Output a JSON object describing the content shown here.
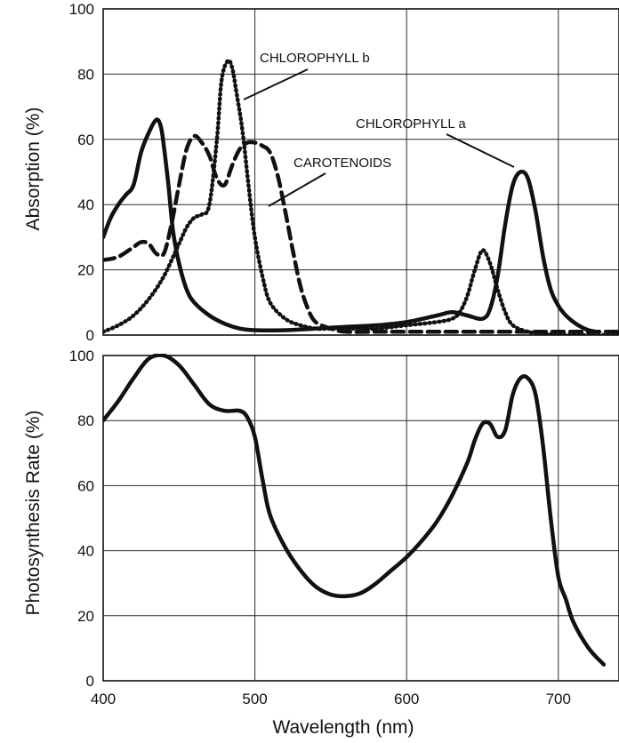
{
  "chart_data": [
    {
      "type": "line",
      "title": "",
      "xlabel": "",
      "ylabel": "Absorption (%)",
      "xlim": [
        400,
        740
      ],
      "ylim": [
        0,
        100
      ],
      "x_ticks": [
        400,
        500,
        600,
        700
      ],
      "y_ticks": [
        "0",
        "20",
        "40",
        "60",
        "80",
        "100"
      ],
      "grid": true,
      "series": [
        {
          "name": "CHLOROPHYLL a",
          "style": "solid",
          "color": "#111111",
          "x": [
            400,
            405,
            410,
            415,
            420,
            425,
            430,
            435,
            438,
            440,
            443,
            446,
            450,
            455,
            460,
            470,
            480,
            490,
            500,
            520,
            540,
            560,
            580,
            600,
            620,
            630,
            640,
            650,
            655,
            660,
            665,
            670,
            675,
            680,
            685,
            690,
            695,
            700,
            705,
            710,
            715,
            720,
            725
          ],
          "y": [
            30,
            36,
            40,
            43,
            46,
            56,
            62,
            66,
            64,
            58,
            46,
            32,
            22,
            14,
            10,
            6,
            3.5,
            2,
            1.5,
            1.5,
            2,
            2.5,
            3,
            4,
            6,
            7,
            6,
            5,
            8,
            18,
            34,
            46,
            50,
            48,
            38,
            24,
            14,
            9,
            6,
            4,
            2.5,
            1.5,
            1
          ]
        },
        {
          "name": "CHLOROPHYLL b",
          "style": "dotted",
          "color": "#111111",
          "x": [
            400,
            410,
            420,
            430,
            440,
            450,
            455,
            460,
            465,
            470,
            475,
            478,
            482,
            485,
            488,
            492,
            496,
            500,
            505,
            510,
            520,
            530,
            540,
            550,
            560,
            580,
            600,
            620,
            630,
            635,
            640,
            645,
            650,
            655,
            660,
            665,
            670,
            680,
            690,
            700,
            740
          ],
          "y": [
            1,
            3,
            6,
            11,
            18,
            28,
            33,
            36,
            37,
            40,
            60,
            78,
            84,
            82,
            74,
            62,
            45,
            30,
            18,
            10,
            5,
            3,
            2,
            2,
            2,
            2,
            3,
            4,
            5,
            7,
            12,
            20,
            26,
            22,
            14,
            7,
            3,
            1,
            0.5,
            0,
            0
          ]
        },
        {
          "name": "CAROTENOIDS",
          "style": "dashed",
          "color": "#111111",
          "x": [
            400,
            410,
            420,
            425,
            430,
            435,
            440,
            445,
            450,
            455,
            460,
            465,
            470,
            475,
            480,
            485,
            490,
            495,
            500,
            505,
            510,
            515,
            520,
            525,
            530,
            535,
            540,
            550,
            560,
            580,
            600,
            620,
            640,
            700,
            740
          ],
          "y": [
            23,
            24,
            27,
            28.5,
            28,
            25,
            25,
            34,
            46,
            57,
            61,
            59,
            55,
            48,
            46,
            52,
            57,
            59,
            59,
            58,
            56,
            49,
            38,
            26,
            15,
            8,
            4,
            2,
            1,
            1,
            1,
            1,
            1,
            1,
            1
          ]
        }
      ]
    },
    {
      "type": "line",
      "title": "",
      "xlabel": "Wavelength (nm)",
      "ylabel": "Photosynthesis Rate (%)",
      "xlim": [
        400,
        740
      ],
      "ylim": [
        0,
        100
      ],
      "x_ticks": [
        "400",
        "500",
        "600",
        "700"
      ],
      "y_ticks": [
        "0",
        "20",
        "40",
        "60",
        "80",
        "100"
      ],
      "grid": true,
      "series": [
        {
          "style": "solid",
          "color": "#111111",
          "x": [
            400,
            410,
            420,
            430,
            440,
            450,
            460,
            470,
            480,
            490,
            495,
            500,
            505,
            510,
            520,
            530,
            540,
            550,
            560,
            570,
            580,
            590,
            600,
            610,
            620,
            630,
            640,
            645,
            650,
            655,
            660,
            665,
            670,
            675,
            680,
            685,
            690,
            695,
            700,
            705,
            710,
            720,
            730
          ],
          "y": [
            80,
            86,
            93,
            99,
            100,
            97,
            91,
            85,
            83,
            83,
            81,
            75,
            62,
            51,
            41,
            34,
            29,
            26.5,
            26,
            27,
            30,
            34,
            38,
            43,
            49,
            57,
            67,
            74,
            79,
            79,
            75,
            77,
            88,
            93,
            93,
            88,
            72,
            50,
            32,
            25,
            18,
            10,
            5
          ]
        }
      ]
    }
  ],
  "annotations": {
    "chlorophyll_b": "CHLOROPHYLL b",
    "chlorophyll_a": "CHLOROPHYLL a",
    "carotenoids": "CAROTENOIDS"
  }
}
